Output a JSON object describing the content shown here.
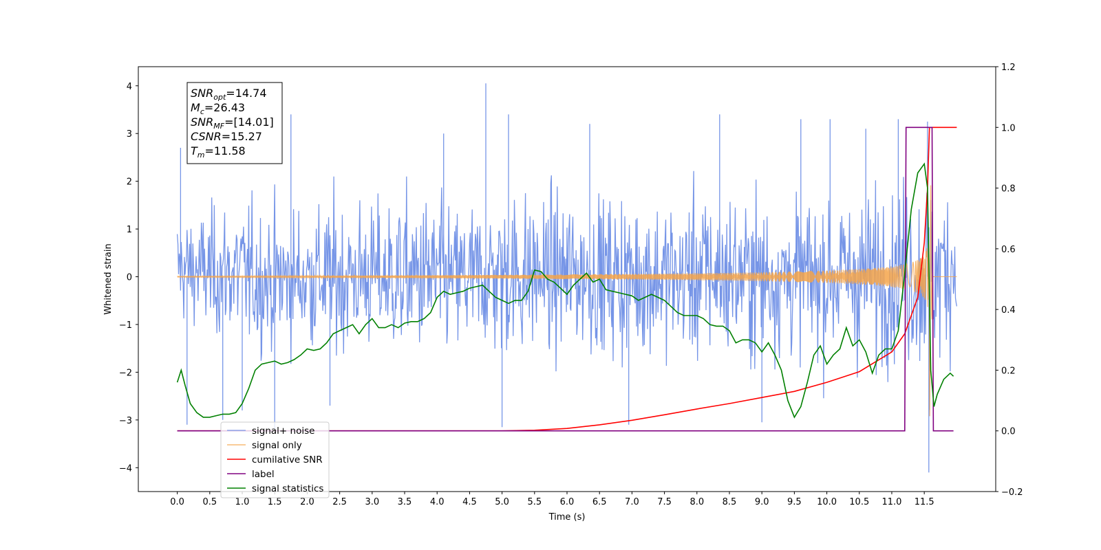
{
  "chart_data": {
    "type": "line",
    "xlabel": "Time (s)",
    "ylabel": "Whitened strain",
    "xlim": [
      -0.6,
      12.6
    ],
    "ylim": [
      -4.5,
      4.4
    ],
    "y2lim": [
      -0.2,
      1.2
    ],
    "xticks": [
      "0.0",
      "0.5",
      "1.0",
      "1.5",
      "2.0",
      "2.5",
      "3.0",
      "3.5",
      "4.0",
      "4.5",
      "5.0",
      "5.5",
      "6.0",
      "6.5",
      "7.0",
      "7.5",
      "8.0",
      "8.5",
      "9.0",
      "9.5",
      "10.0",
      "10.5",
      "11.0",
      "11.5"
    ],
    "yticks": [
      "4",
      "3",
      "2",
      "1",
      "0",
      "−1",
      "−2",
      "−3",
      "−4"
    ],
    "y2ticks": [
      "1.2",
      "1.0",
      "0.8",
      "0.6",
      "0.4",
      "0.2",
      "0.0",
      "−0.2"
    ],
    "grid": false,
    "legend_position": "lower-left",
    "series": [
      {
        "name": "signal+ noise",
        "axis": "left",
        "color": "#6f8fe6",
        "x_range": [
          0.0,
          12.0
        ],
        "envelope_upper": [
          1.8,
          2.0,
          2.3,
          2.2,
          2.1,
          2.3,
          2.4,
          2.3,
          2.5,
          2.6,
          2.2,
          2.4,
          2.7,
          2.5,
          2.6,
          2.4,
          2.6,
          2.5,
          2.4,
          2.8,
          2.6,
          2.6,
          2.5,
          2.4,
          2.6,
          2.7,
          2.9,
          3.0,
          2.7
        ],
        "envelope_lower": [
          -1.4,
          -1.8,
          -2.1,
          -2.3,
          -2.2,
          -2.3,
          -2.4,
          -2.2,
          -2.5,
          -2.6,
          -2.3,
          -2.4,
          -2.6,
          -2.4,
          -2.5,
          -2.3,
          -2.6,
          -2.4,
          -2.5,
          -2.7,
          -2.5,
          -2.6,
          -2.5,
          -2.4,
          -2.6,
          -2.7,
          -2.5,
          -3.0,
          -2.1
        ],
        "spikes": [
          [
            0.05,
            2.7
          ],
          [
            0.15,
            -3.1
          ],
          [
            0.7,
            -3.0
          ],
          [
            1.0,
            -2.8
          ],
          [
            1.5,
            -3.2
          ],
          [
            1.75,
            3.4
          ],
          [
            2.35,
            -2.7
          ],
          [
            4.1,
            3.0
          ],
          [
            4.75,
            4.05
          ],
          [
            5.1,
            3.4
          ],
          [
            5.0,
            -3.15
          ],
          [
            6.35,
            3.2
          ],
          [
            6.95,
            -3.1
          ],
          [
            8.35,
            3.4
          ],
          [
            9.0,
            -3.05
          ],
          [
            9.6,
            3.3
          ],
          [
            10.05,
            3.3
          ],
          [
            10.6,
            3.1
          ],
          [
            11.1,
            3.3
          ],
          [
            11.55,
            3.25
          ],
          [
            11.57,
            -4.1
          ]
        ],
        "spike_count": 1200
      },
      {
        "name": "signal only",
        "axis": "left",
        "color": "#f5a44a",
        "x_range": [
          0.0,
          12.0
        ],
        "chirp_end_time": 11.58,
        "peak_amplitude": 3.2
      },
      {
        "name": "cumilative SNR",
        "axis": "right",
        "color": "#ff0000",
        "x": [
          0.0,
          5.0,
          5.5,
          6.0,
          6.5,
          7.0,
          7.5,
          8.0,
          8.5,
          9.0,
          9.5,
          10.0,
          10.5,
          11.0,
          11.2,
          11.4,
          11.5,
          11.55,
          11.58,
          11.6,
          12.0
        ],
        "values": [
          0.0,
          0.0,
          0.002,
          0.008,
          0.02,
          0.035,
          0.053,
          0.072,
          0.09,
          0.11,
          0.13,
          0.16,
          0.195,
          0.26,
          0.32,
          0.44,
          0.62,
          0.8,
          1.0,
          1.0,
          1.0
        ]
      },
      {
        "name": "label",
        "axis": "right",
        "color": "#800080",
        "x": [
          0.0,
          11.2,
          11.22,
          11.62,
          11.64,
          11.95
        ],
        "values": [
          0.0,
          0.0,
          1.0,
          1.0,
          0.0,
          0.0
        ]
      },
      {
        "name": "signal statistics",
        "axis": "right",
        "color": "#008000",
        "x": [
          0.0,
          0.06,
          0.12,
          0.2,
          0.3,
          0.4,
          0.5,
          0.6,
          0.7,
          0.8,
          0.9,
          1.0,
          1.1,
          1.2,
          1.3,
          1.4,
          1.5,
          1.6,
          1.7,
          1.8,
          1.9,
          2.0,
          2.1,
          2.2,
          2.3,
          2.4,
          2.5,
          2.6,
          2.7,
          2.8,
          2.9,
          3.0,
          3.1,
          3.2,
          3.3,
          3.4,
          3.5,
          3.6,
          3.7,
          3.8,
          3.9,
          4.0,
          4.1,
          4.2,
          4.3,
          4.4,
          4.5,
          4.6,
          4.7,
          4.8,
          4.9,
          5.0,
          5.1,
          5.2,
          5.3,
          5.4,
          5.5,
          5.6,
          5.7,
          5.8,
          5.9,
          6.0,
          6.1,
          6.2,
          6.3,
          6.4,
          6.5,
          6.6,
          6.7,
          6.8,
          6.9,
          7.0,
          7.1,
          7.2,
          7.3,
          7.4,
          7.5,
          7.6,
          7.7,
          7.8,
          7.9,
          8.0,
          8.1,
          8.2,
          8.3,
          8.4,
          8.5,
          8.6,
          8.7,
          8.8,
          8.9,
          9.0,
          9.1,
          9.2,
          9.3,
          9.4,
          9.5,
          9.6,
          9.7,
          9.8,
          9.9,
          10.0,
          10.1,
          10.2,
          10.3,
          10.4,
          10.5,
          10.6,
          10.7,
          10.8,
          10.9,
          11.0,
          11.1,
          11.2,
          11.3,
          11.4,
          11.5,
          11.55,
          11.6,
          11.65,
          11.7,
          11.8,
          11.9,
          11.95
        ],
        "values": [
          0.16,
          0.2,
          0.15,
          0.09,
          0.06,
          0.045,
          0.045,
          0.05,
          0.055,
          0.055,
          0.06,
          0.09,
          0.14,
          0.2,
          0.22,
          0.225,
          0.23,
          0.22,
          0.225,
          0.235,
          0.25,
          0.27,
          0.265,
          0.27,
          0.29,
          0.32,
          0.33,
          0.34,
          0.35,
          0.32,
          0.35,
          0.37,
          0.34,
          0.34,
          0.35,
          0.34,
          0.355,
          0.36,
          0.36,
          0.37,
          0.39,
          0.44,
          0.46,
          0.45,
          0.455,
          0.46,
          0.47,
          0.475,
          0.48,
          0.46,
          0.44,
          0.43,
          0.42,
          0.43,
          0.43,
          0.46,
          0.53,
          0.525,
          0.5,
          0.49,
          0.47,
          0.45,
          0.48,
          0.5,
          0.52,
          0.49,
          0.5,
          0.465,
          0.46,
          0.455,
          0.45,
          0.445,
          0.43,
          0.44,
          0.45,
          0.44,
          0.43,
          0.41,
          0.39,
          0.38,
          0.38,
          0.38,
          0.37,
          0.35,
          0.345,
          0.345,
          0.33,
          0.29,
          0.3,
          0.3,
          0.29,
          0.26,
          0.29,
          0.25,
          0.2,
          0.1,
          0.045,
          0.08,
          0.16,
          0.25,
          0.28,
          0.22,
          0.25,
          0.27,
          0.34,
          0.28,
          0.3,
          0.26,
          0.19,
          0.25,
          0.27,
          0.27,
          0.33,
          0.52,
          0.73,
          0.85,
          0.88,
          0.8,
          0.2,
          0.08,
          0.12,
          0.17,
          0.19,
          0.18
        ]
      }
    ]
  },
  "infobox": {
    "lines": [
      {
        "sym": "SNR",
        "sub": "opt",
        "value": "=14.74"
      },
      {
        "sym": "M",
        "sub": "c",
        "value": "=26.43"
      },
      {
        "sym": "SNR",
        "sub": "MF",
        "value": "=[14.01]"
      },
      {
        "sym": "CSNR",
        "sub": "",
        "value": "=15.27"
      },
      {
        "sym": "T",
        "sub": "m",
        "value": "=11.58"
      }
    ]
  }
}
